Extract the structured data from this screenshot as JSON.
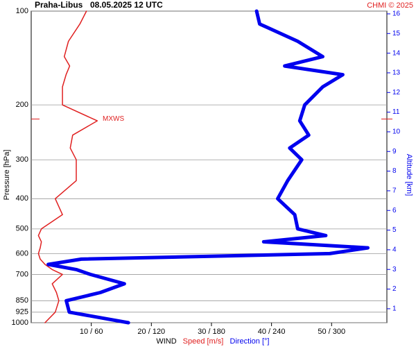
{
  "chart_data": {
    "type": "line",
    "station": "Praha-Libus",
    "date": "08.05.2025 12 UTC",
    "credit": "CHMI © 2025",
    "y_label": "Pressure [hPa]",
    "y2_label": "Altitude [km]",
    "x_label": "WIND",
    "ylog": true,
    "grid": true,
    "ylim": [
      1000,
      100
    ],
    "yticks": [
      100,
      200,
      300,
      400,
      500,
      600,
      700,
      850,
      925,
      1000
    ],
    "y2lim": [
      0.29,
      16.14
    ],
    "y2ticks": [
      1,
      2,
      3,
      4,
      5,
      6,
      7,
      8,
      9,
      10,
      11,
      12,
      13,
      14,
      15,
      16
    ],
    "xlim": [
      0,
      59.2
    ],
    "x2lim": [
      0,
      355
    ],
    "xticks": [
      {
        "value": 10,
        "label": "10 / 60"
      },
      {
        "value": 20,
        "label": "20 / 120"
      },
      {
        "value": 30,
        "label": "30 / 180"
      },
      {
        "value": 40,
        "label": "40 / 240"
      },
      {
        "value": 50,
        "label": "50 / 300"
      }
    ],
    "pressure": [
      1000,
      925,
      850,
      800,
      750,
      700,
      675,
      650,
      625,
      600,
      575,
      550,
      525,
      500,
      450,
      400,
      350,
      300,
      275,
      250,
      225,
      200,
      175,
      160,
      150,
      140,
      125,
      110,
      100
    ],
    "series": [
      {
        "name": "Speed [m/s]",
        "color": "#e02020",
        "axis": "x",
        "values": [
          2.3,
          4,
          4.6,
          4.2,
          3.5,
          5.2,
          3.5,
          2.3,
          1.5,
          1.2,
          1.5,
          1.7,
          1.2,
          1.7,
          5.2,
          4,
          7.5,
          7.5,
          6.5,
          6.9,
          11,
          5.2,
          5.2,
          5.8,
          6.4,
          5.5,
          6.2,
          8.1,
          9.2
        ]
      },
      {
        "name": "Direction [°]",
        "color": "#0000ee",
        "axis": "x2",
        "values": [
          97,
          38,
          35,
          69,
          93,
          59,
          45,
          17,
          50,
          298,
          336,
          232,
          294,
          266,
          263,
          246,
          256,
          270,
          258,
          277,
          268,
          273,
          291,
          311,
          253,
          291,
          266,
          228,
          225
        ]
      }
    ],
    "annotation": {
      "text": "MXWS",
      "pressure": 222,
      "color": "#e02020"
    }
  }
}
